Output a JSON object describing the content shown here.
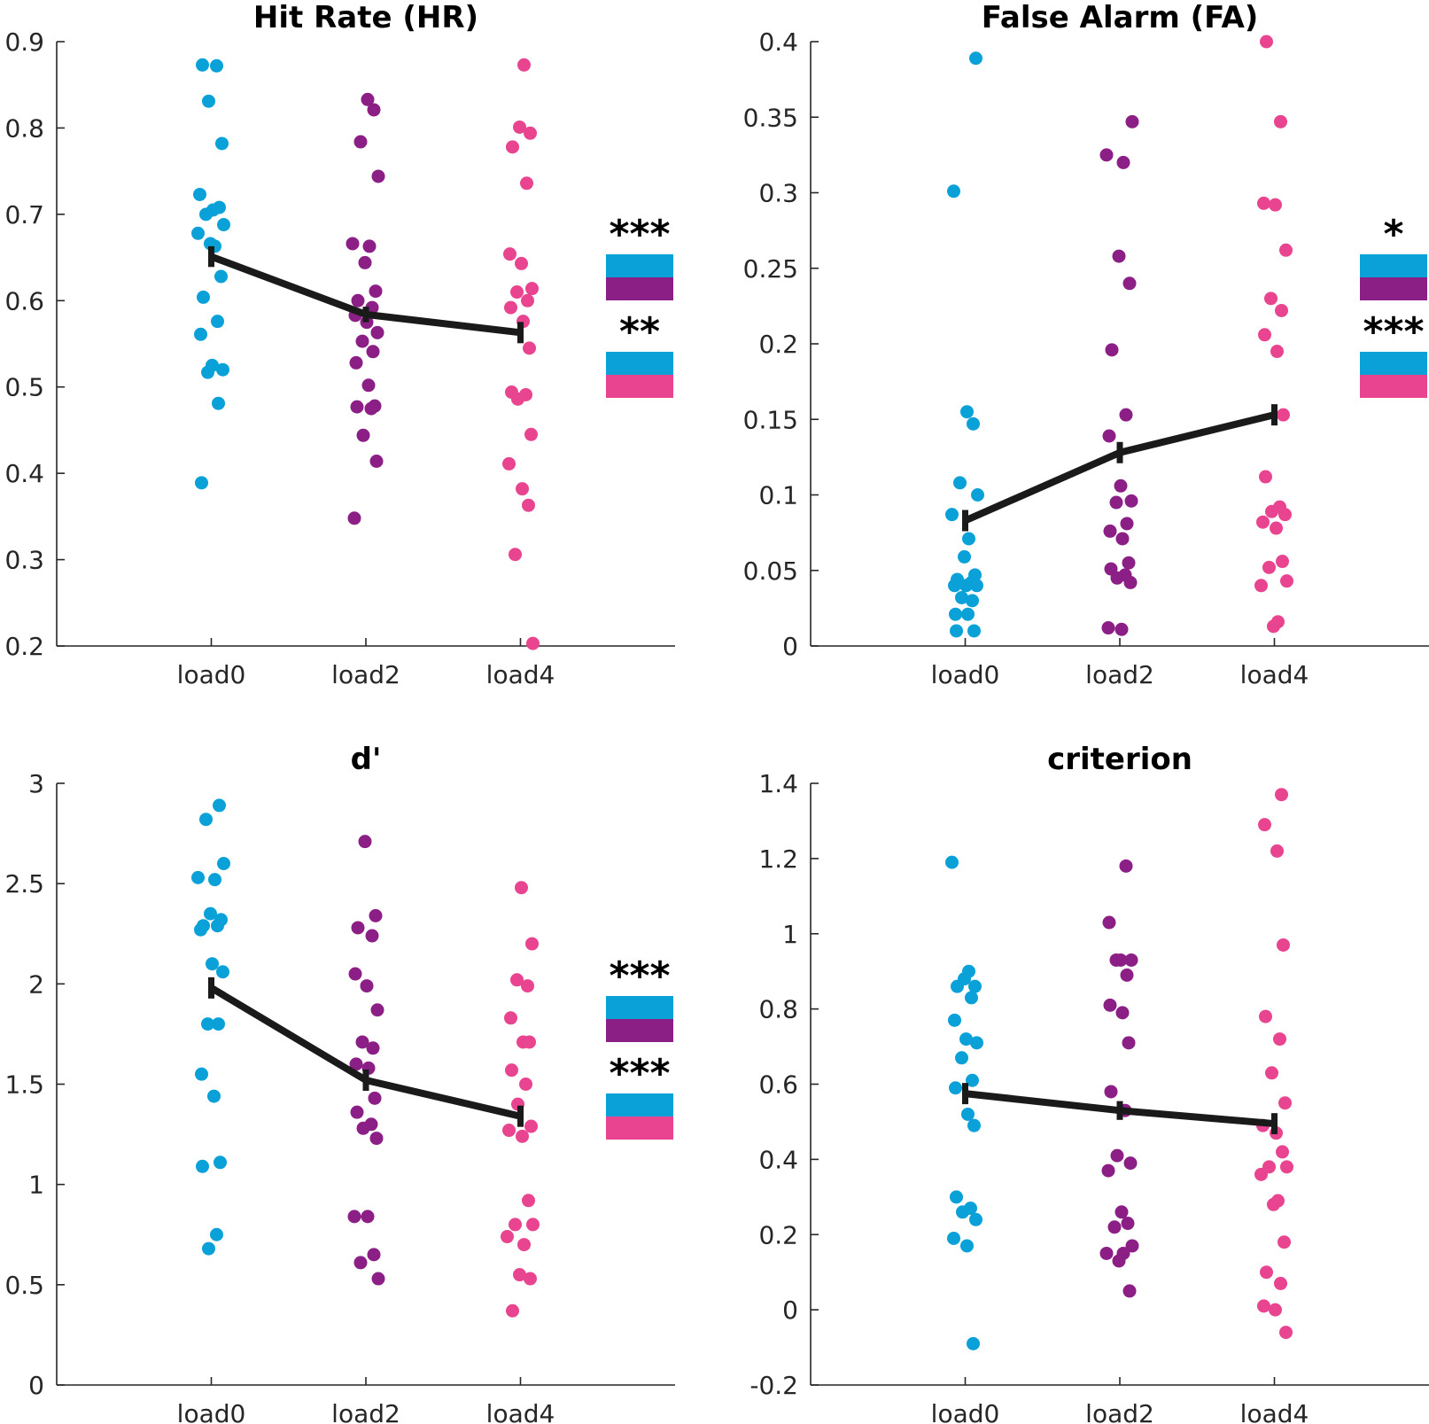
{
  "colors": {
    "load0": "#0aa1d8",
    "load2": "#8b1f86",
    "load4": "#e8448f",
    "mean_line": "#1a1a1a",
    "axis": "#262626"
  },
  "chart_data": [
    {
      "type": "scatter",
      "title": "Hit Rate (HR)",
      "categories": [
        "load0",
        "load2",
        "load4"
      ],
      "ylim": [
        0.2,
        0.9
      ],
      "yticks": [
        "0.2",
        "0.3",
        "0.4",
        "0.5",
        "0.6",
        "0.7",
        "0.8",
        "0.9"
      ],
      "grid": false,
      "series": [
        {
          "category": "load0",
          "values": [
            0.873,
            0.872,
            0.831,
            0.782,
            0.723,
            0.705,
            0.708,
            0.7,
            0.688,
            0.678,
            0.663,
            0.666,
            0.628,
            0.604,
            0.576,
            0.561,
            0.525,
            0.52,
            0.517,
            0.481,
            0.389
          ]
        },
        {
          "category": "load2",
          "values": [
            0.833,
            0.821,
            0.784,
            0.744,
            0.666,
            0.663,
            0.644,
            0.611,
            0.6,
            0.592,
            0.583,
            0.575,
            0.563,
            0.553,
            0.541,
            0.528,
            0.502,
            0.478,
            0.477,
            0.475,
            0.444,
            0.414,
            0.348
          ]
        },
        {
          "category": "load4",
          "values": [
            0.873,
            0.801,
            0.794,
            0.778,
            0.736,
            0.654,
            0.643,
            0.614,
            0.61,
            0.6,
            0.592,
            0.576,
            0.545,
            0.494,
            0.491,
            0.486,
            0.445,
            0.411,
            0.382,
            0.363,
            0.306,
            0.203
          ]
        }
      ],
      "mean": {
        "values": [
          0.651,
          0.584,
          0.563
        ],
        "error": [
          0.012,
          0.009,
          0.014
        ]
      },
      "significance": [
        {
          "stars": "***",
          "pair": [
            "load0",
            "load2"
          ]
        },
        {
          "stars": "**",
          "pair": [
            "load0",
            "load4"
          ]
        }
      ]
    },
    {
      "type": "scatter",
      "title": "False Alarm (FA)",
      "categories": [
        "load0",
        "load2",
        "load4"
      ],
      "ylim": [
        0,
        0.4
      ],
      "yticks": [
        "0",
        "0.05",
        "0.1",
        "0.15",
        "0.2",
        "0.25",
        "0.3",
        "0.35",
        "0.4"
      ],
      "grid": false,
      "series": [
        {
          "category": "load0",
          "values": [
            0.389,
            0.301,
            0.155,
            0.147,
            0.108,
            0.1,
            0.087,
            0.071,
            0.059,
            0.047,
            0.044,
            0.042,
            0.04,
            0.04,
            0.04,
            0.032,
            0.03,
            0.021,
            0.021,
            0.01,
            0.01
          ]
        },
        {
          "category": "load2",
          "values": [
            0.347,
            0.325,
            0.32,
            0.258,
            0.24,
            0.196,
            0.153,
            0.139,
            0.106,
            0.096,
            0.095,
            0.081,
            0.076,
            0.071,
            0.055,
            0.051,
            0.047,
            0.045,
            0.042,
            0.012,
            0.011
          ]
        },
        {
          "category": "load4",
          "values": [
            0.4,
            0.347,
            0.293,
            0.292,
            0.262,
            0.23,
            0.222,
            0.206,
            0.195,
            0.153,
            0.112,
            0.092,
            0.089,
            0.087,
            0.082,
            0.078,
            0.056,
            0.052,
            0.043,
            0.04,
            0.016,
            0.013
          ]
        }
      ],
      "mean": {
        "values": [
          0.083,
          0.128,
          0.153
        ],
        "error": [
          0.012,
          0.011,
          0.01
        ]
      },
      "significance": [
        {
          "stars": "*",
          "pair": [
            "load0",
            "load2"
          ]
        },
        {
          "stars": "***",
          "pair": [
            "load0",
            "load4"
          ]
        }
      ]
    },
    {
      "type": "scatter",
      "title": "d'",
      "categories": [
        "load0",
        "load2",
        "load4"
      ],
      "ylim": [
        0,
        3
      ],
      "yticks": [
        "0",
        "0.5",
        "1",
        "1.5",
        "2",
        "2.5",
        "3"
      ],
      "grid": false,
      "series": [
        {
          "category": "load0",
          "values": [
            2.89,
            2.82,
            2.6,
            2.53,
            2.52,
            2.35,
            2.32,
            2.29,
            2.29,
            2.27,
            2.1,
            2.06,
            1.8,
            1.8,
            1.55,
            1.44,
            1.11,
            1.09,
            0.75,
            0.68
          ]
        },
        {
          "category": "load2",
          "values": [
            2.71,
            2.34,
            2.28,
            2.24,
            2.05,
            1.99,
            1.87,
            1.71,
            1.68,
            1.6,
            1.58,
            1.43,
            1.36,
            1.3,
            1.28,
            1.23,
            0.84,
            0.84,
            0.65,
            0.61,
            0.53
          ]
        },
        {
          "category": "load4",
          "values": [
            2.48,
            2.2,
            2.02,
            1.99,
            1.83,
            1.71,
            1.71,
            1.57,
            1.5,
            1.4,
            1.29,
            1.27,
            1.24,
            0.92,
            0.8,
            0.8,
            0.74,
            0.7,
            0.55,
            0.53,
            0.37
          ]
        }
      ],
      "mean": {
        "values": [
          1.98,
          1.52,
          1.34
        ],
        "error": [
          0.15,
          0.13,
          0.14
        ]
      },
      "significance": [
        {
          "stars": "***",
          "pair": [
            "load0",
            "load2"
          ]
        },
        {
          "stars": "***",
          "pair": [
            "load0",
            "load4"
          ]
        }
      ]
    },
    {
      "type": "scatter",
      "title": "criterion",
      "categories": [
        "load0",
        "load2",
        "load4"
      ],
      "ylim": [
        -0.2,
        1.4
      ],
      "yticks": [
        "-0.2",
        "0",
        "0.2",
        "0.4",
        "0.6",
        "0.8",
        "1",
        "1.2",
        "1.4"
      ],
      "grid": false,
      "series": [
        {
          "category": "load0",
          "values": [
            1.19,
            0.9,
            0.88,
            0.86,
            0.86,
            0.83,
            0.77,
            0.72,
            0.71,
            0.67,
            0.61,
            0.59,
            0.52,
            0.49,
            0.3,
            0.27,
            0.26,
            0.24,
            0.19,
            0.17,
            -0.09
          ]
        },
        {
          "category": "load2",
          "values": [
            1.18,
            1.03,
            0.93,
            0.93,
            0.93,
            0.89,
            0.81,
            0.79,
            0.71,
            0.58,
            0.53,
            0.41,
            0.39,
            0.37,
            0.26,
            0.23,
            0.22,
            0.17,
            0.15,
            0.15,
            0.13,
            0.05
          ]
        },
        {
          "category": "load4",
          "values": [
            1.37,
            1.29,
            1.22,
            0.97,
            0.78,
            0.72,
            0.63,
            0.55,
            0.49,
            0.47,
            0.42,
            0.38,
            0.38,
            0.36,
            0.29,
            0.28,
            0.18,
            0.1,
            0.07,
            0.01,
            0.0,
            -0.06
          ]
        }
      ],
      "mean": {
        "values": [
          0.575,
          0.53,
          0.495
        ],
        "error": [
          0.03,
          0.025,
          0.028
        ]
      },
      "significance": []
    }
  ]
}
